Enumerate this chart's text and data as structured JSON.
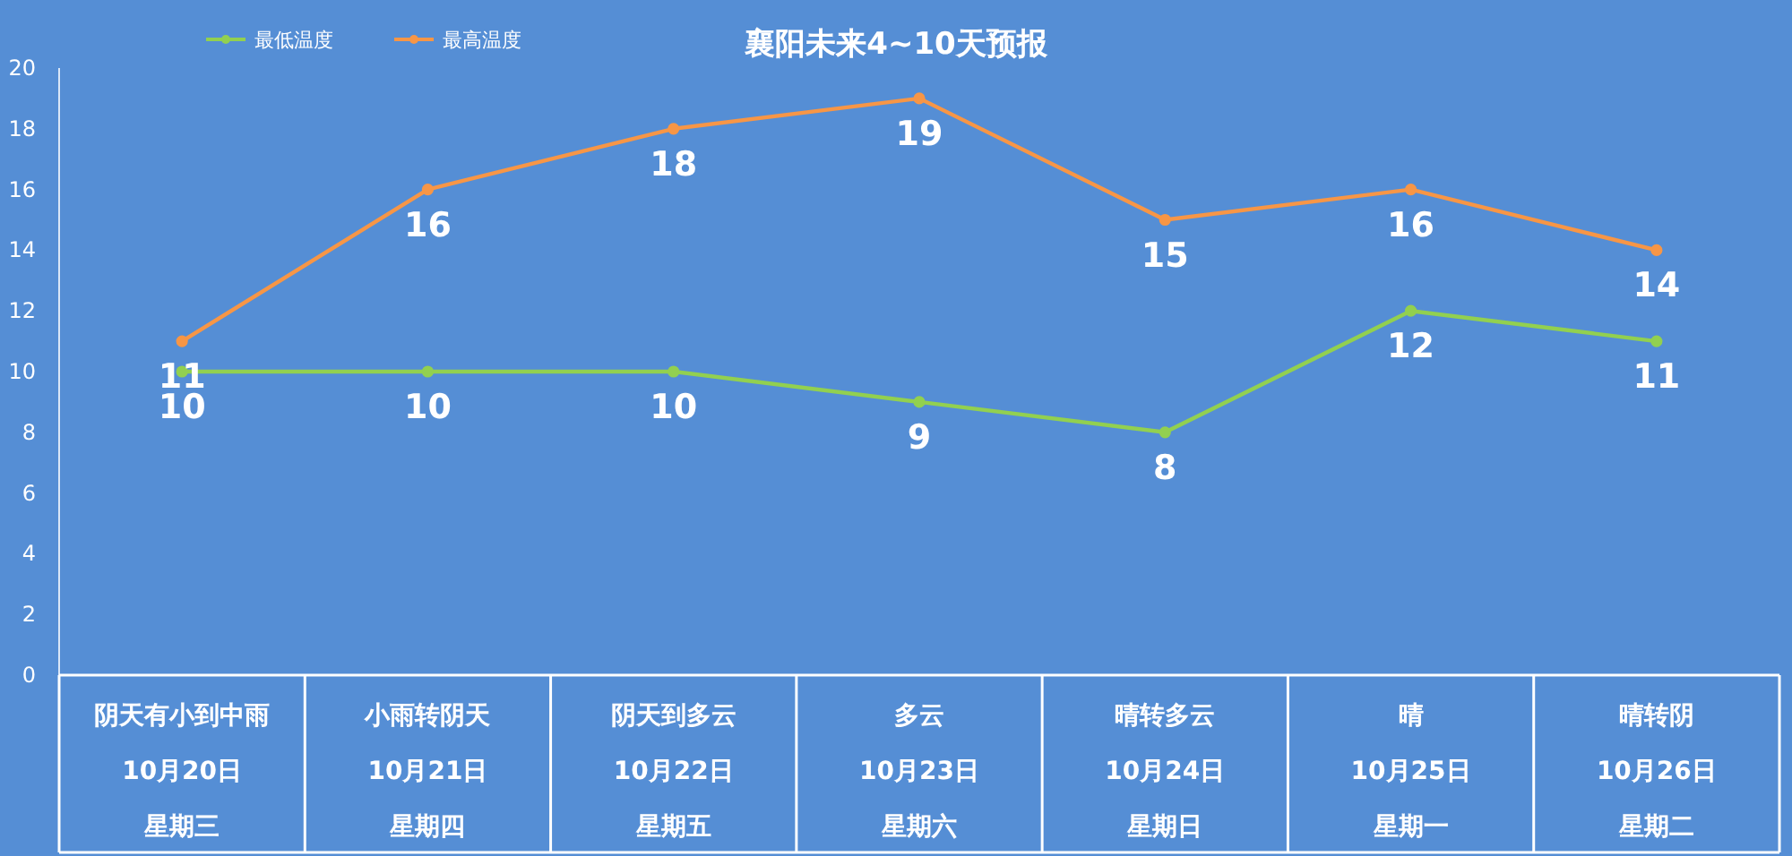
{
  "chart_data": {
    "type": "line",
    "title": "襄阳未来4~10天预报",
    "categories": [
      "阴天有小到中雨10月20日星期三",
      "小雨转阴天10月21日星期四",
      "阴天到多云10月22日星期五",
      "多云10月23日星期六",
      "晴转多云10月24日星期日",
      "晴10月25日星期一",
      "晴转阴10月26日星期二"
    ],
    "series": [
      {
        "name": "最低温度",
        "color": "#92d050",
        "values": [
          10,
          10,
          10,
          9,
          8,
          12,
          11
        ]
      },
      {
        "name": "最高温度",
        "color": "#f79646",
        "values": [
          11,
          16,
          18,
          19,
          15,
          16,
          14
        ]
      }
    ],
    "ylim": [
      0,
      20
    ],
    "yticks": [
      0,
      2,
      4,
      6,
      8,
      10,
      12,
      14,
      16,
      18,
      20
    ],
    "data_labels": true,
    "legend": "top left",
    "marker": "circle",
    "grid": false
  }
}
